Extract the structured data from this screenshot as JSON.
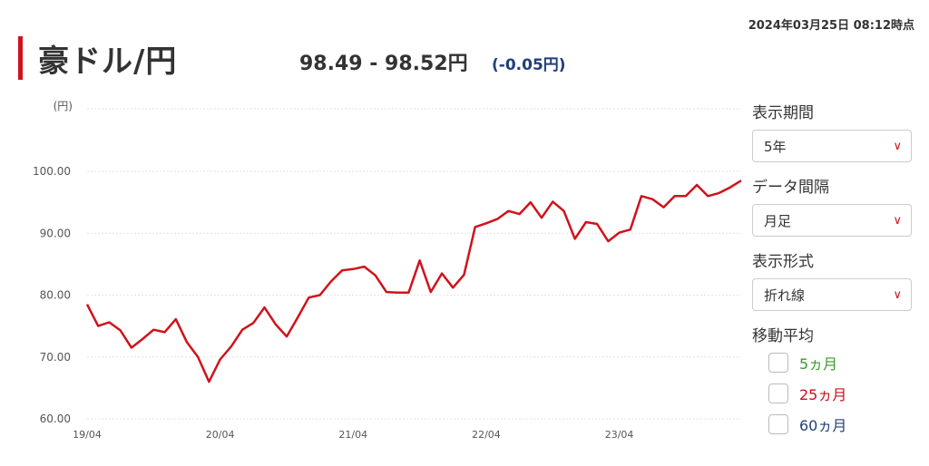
{
  "header": {
    "timestamp": "2024年03月25日 08:12時点",
    "title": "豪ドル/円",
    "price": "98.49 - 98.52円",
    "change": "(-0.05円)"
  },
  "controls": {
    "period_label": "表示期間",
    "period_value": "5年",
    "interval_label": "データ間隔",
    "interval_value": "月足",
    "format_label": "表示形式",
    "format_value": "折れ線",
    "ma_label": "移動平均",
    "ma_items": [
      {
        "label": "5ヵ月",
        "color": "#3a9a2a"
      },
      {
        "label": "25ヵ月",
        "color": "#c3121b"
      },
      {
        "label": "60ヵ月",
        "color": "#1f3f7a"
      }
    ]
  },
  "chart_data": {
    "type": "line",
    "unit_label": "(円)",
    "ylim": [
      60,
      100
    ],
    "yticks": [
      "60.00",
      "70.00",
      "80.00",
      "90.00",
      "100.00"
    ],
    "xtick_labels": [
      "19/04",
      "20/04",
      "21/04",
      "22/04",
      "23/04"
    ],
    "xtick_index": [
      0,
      12,
      24,
      36,
      48
    ],
    "line_color": "#d0121b",
    "grid": true,
    "values": [
      78.5,
      75.0,
      75.6,
      74.3,
      71.5,
      72.9,
      74.4,
      74.0,
      76.1,
      72.4,
      70.0,
      66.0,
      69.6,
      71.7,
      74.4,
      75.5,
      78.0,
      75.3,
      73.3,
      76.4,
      79.6,
      80.0,
      82.2,
      84.0,
      84.2,
      84.6,
      83.2,
      80.5,
      80.4,
      80.4,
      85.6,
      80.5,
      83.5,
      81.2,
      83.3,
      91.0,
      91.6,
      92.3,
      93.6,
      93.1,
      95.0,
      92.5,
      95.1,
      93.6,
      89.1,
      91.8,
      91.5,
      88.7,
      90.1,
      90.6,
      96.0,
      95.5,
      94.2,
      96.0,
      96.0,
      97.8,
      96.0,
      96.5,
      97.4,
      98.5
    ]
  }
}
